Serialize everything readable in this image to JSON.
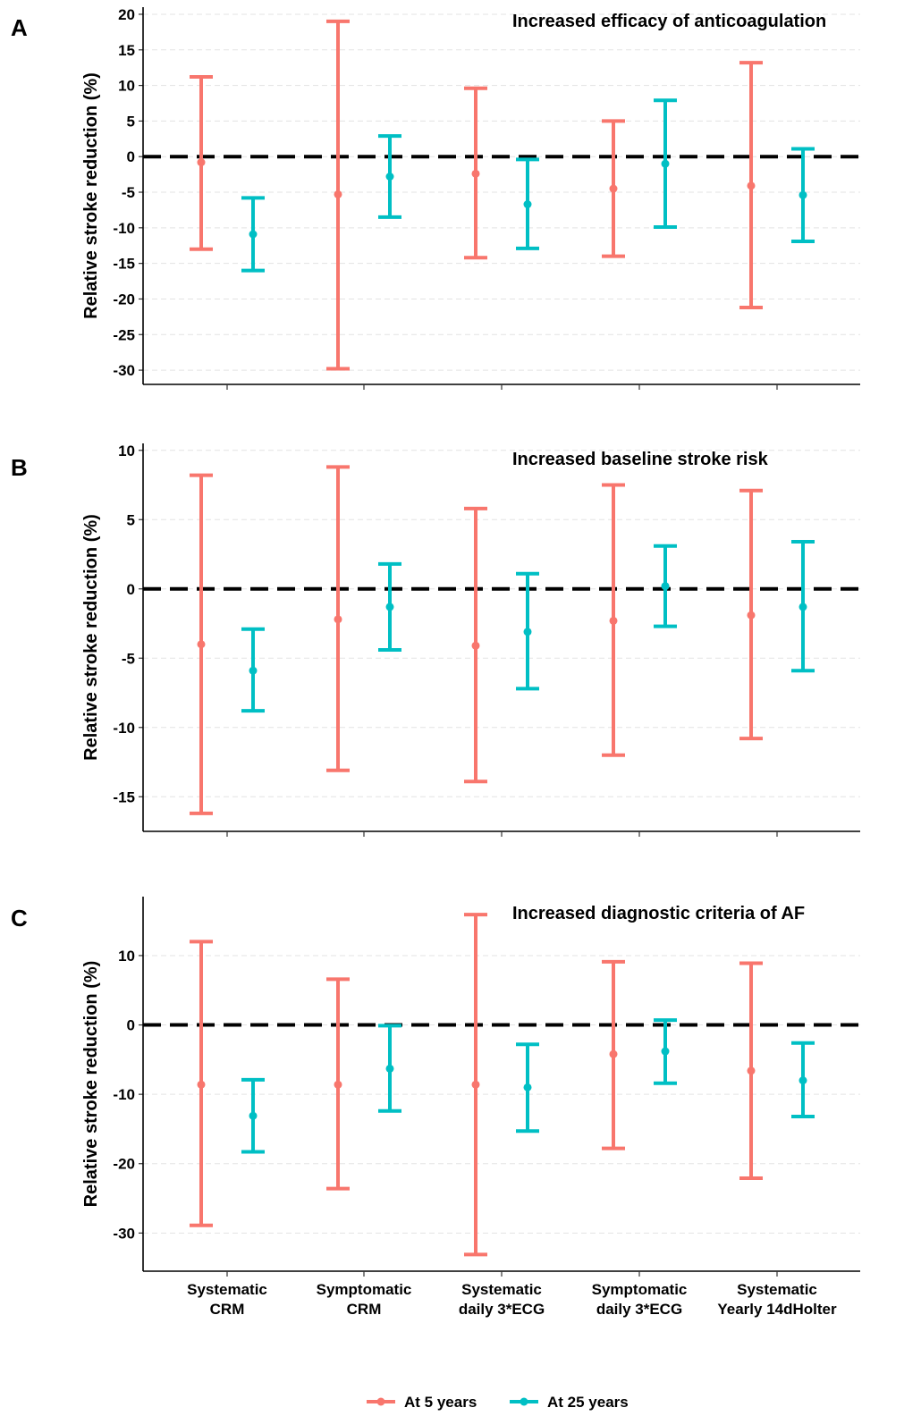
{
  "chart_data": [
    {
      "type": "errorbar",
      "panel_label": "A",
      "title": "Increased efficacy of anticoagulation",
      "ylabel": "Relative stroke reduction (%)",
      "ylim": [
        -32,
        21
      ],
      "yticks": [
        20,
        15,
        10,
        5,
        0,
        -5,
        -10,
        -15,
        -20,
        -25,
        -30
      ],
      "reference_line": 0,
      "grid": "horizontal dashed",
      "categories": [
        "Systematic\nCRM",
        "Symptomatic\nCRM",
        "Systematic\ndaily 3*ECG",
        "Symptomatic\ndaily 3*ECG",
        "Systematic\nYearly 14dHolter"
      ],
      "series": [
        {
          "name": "At 5 years",
          "color": "#F8766D",
          "mean": [
            -0.8,
            -5.3,
            -2.4,
            -4.5,
            -4.1
          ],
          "lower": [
            -13,
            -29.8,
            -14.2,
            -14,
            -21.2
          ],
          "upper": [
            11.2,
            19,
            9.6,
            5,
            13.2
          ]
        },
        {
          "name": "At 25 years",
          "color": "#00BFC4",
          "mean": [
            -10.9,
            -2.8,
            -6.7,
            -1,
            -5.4
          ],
          "lower": [
            -16,
            -8.5,
            -12.9,
            -9.9,
            -11.9
          ],
          "upper": [
            -5.8,
            2.9,
            -0.4,
            7.9,
            1.1
          ]
        }
      ]
    },
    {
      "type": "errorbar",
      "panel_label": "B",
      "title": "Increased baseline stroke risk",
      "ylabel": "Relative stroke reduction (%)",
      "ylim": [
        -17.5,
        10.5
      ],
      "yticks": [
        10,
        5,
        0,
        -5,
        -10,
        -15
      ],
      "reference_line": 0,
      "grid": "horizontal dashed",
      "categories": [
        "Systematic\nCRM",
        "Symptomatic\nCRM",
        "Systematic\ndaily 3*ECG",
        "Symptomatic\ndaily 3*ECG",
        "Systematic\nYearly 14dHolter"
      ],
      "series": [
        {
          "name": "At 5 years",
          "color": "#F8766D",
          "mean": [
            -4,
            -2.2,
            -4.1,
            -2.3,
            -1.9
          ],
          "lower": [
            -16.2,
            -13.1,
            -13.9,
            -12,
            -10.8
          ],
          "upper": [
            8.2,
            8.8,
            5.8,
            7.5,
            7.1
          ]
        },
        {
          "name": "At 25 years",
          "color": "#00BFC4",
          "mean": [
            -5.9,
            -1.3,
            -3.1,
            0.2,
            -1.3
          ],
          "lower": [
            -8.8,
            -4.4,
            -7.2,
            -2.7,
            -5.9
          ],
          "upper": [
            -2.9,
            1.8,
            1.1,
            3.1,
            3.4
          ]
        }
      ]
    },
    {
      "type": "errorbar",
      "panel_label": "C",
      "title": "Increased diagnostic criteria of AF",
      "ylabel": "Relative stroke reduction (%)",
      "ylim": [
        -35.5,
        18.5
      ],
      "yticks": [
        10,
        0,
        -10,
        -20,
        -30
      ],
      "reference_line": 0,
      "grid": "horizontal dashed",
      "categories": [
        "Systematic\nCRM",
        "Symptomatic\nCRM",
        "Systematic\ndaily 3*ECG",
        "Symptomatic\ndaily 3*ECG",
        "Systematic\nYearly 14dHolter"
      ],
      "series": [
        {
          "name": "At 5 years",
          "color": "#F8766D",
          "mean": [
            -8.6,
            -8.6,
            -8.6,
            -4.2,
            -6.6
          ],
          "lower": [
            -28.9,
            -23.6,
            -33.1,
            -17.8,
            -22.1
          ],
          "upper": [
            12,
            6.6,
            15.9,
            9.1,
            8.9
          ]
        },
        {
          "name": "At 25 years",
          "color": "#00BFC4",
          "mean": [
            -13.1,
            -6.3,
            -9,
            -3.8,
            -8
          ],
          "lower": [
            -18.3,
            -12.4,
            -15.3,
            -8.4,
            -13.2
          ],
          "upper": [
            -7.9,
            -0.1,
            -2.8,
            0.7,
            -2.6
          ]
        }
      ]
    }
  ],
  "x_axis": {
    "tick_labels": [
      [
        "Systematic",
        "CRM"
      ],
      [
        "Symptomatic",
        "CRM"
      ],
      [
        "Systematic",
        "daily 3*ECG"
      ],
      [
        "Symptomatic",
        "daily 3*ECG"
      ],
      [
        "Systematic",
        "Yearly 14dHolter"
      ]
    ]
  },
  "legend": {
    "placement": "bottom-center",
    "items": [
      {
        "label": "At 5 years",
        "color": "#F8766D"
      },
      {
        "label": "At 25 years",
        "color": "#00BFC4"
      }
    ]
  }
}
